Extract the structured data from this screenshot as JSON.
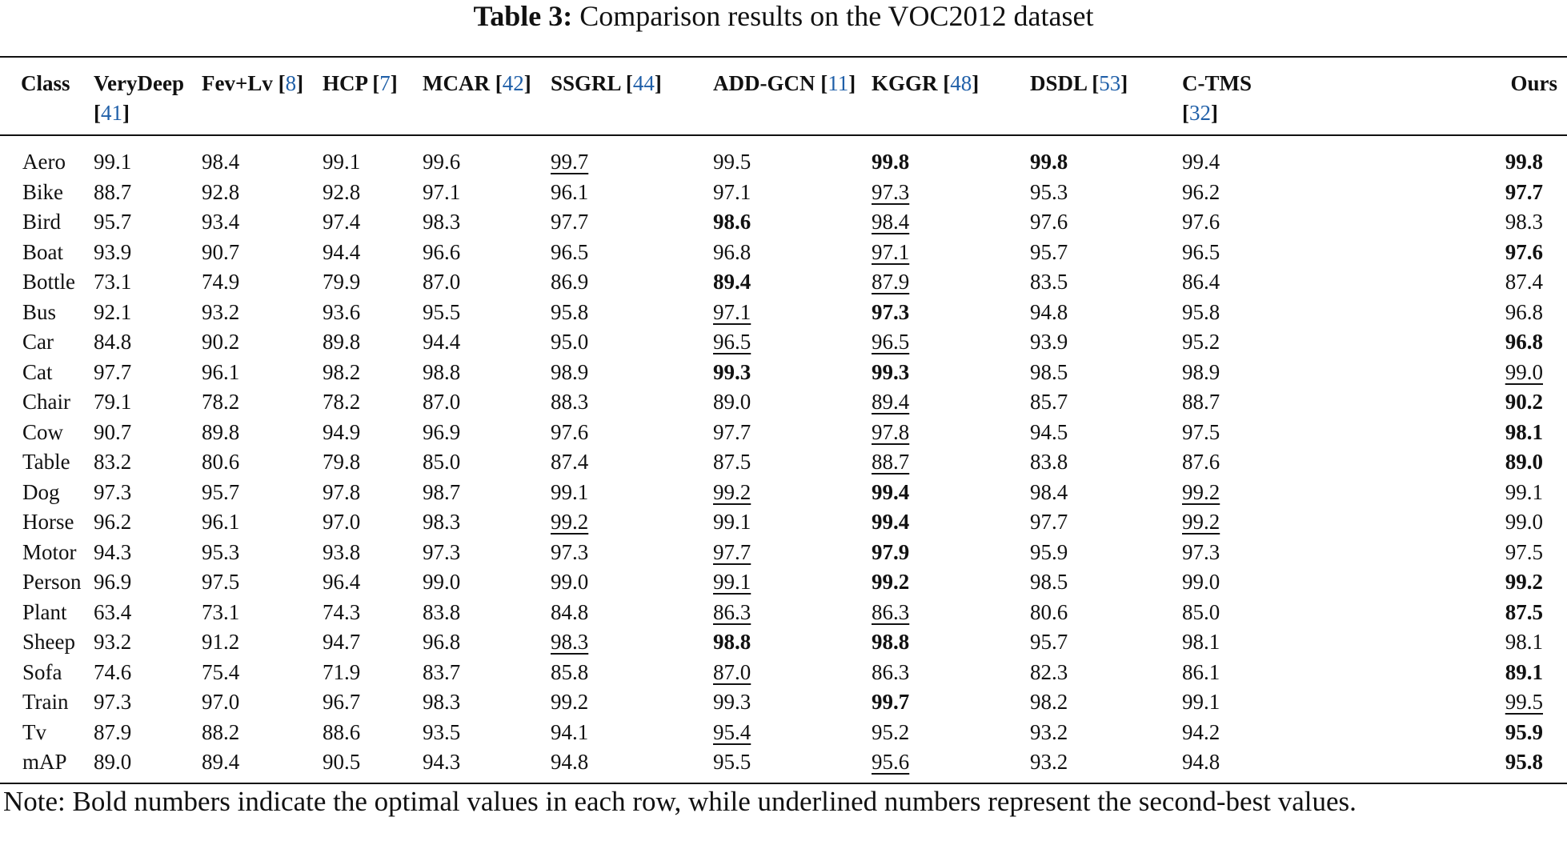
{
  "caption": {
    "label": "Table 3:",
    "text": "Comparison results on the VOC2012 dataset"
  },
  "table": {
    "headers": [
      {
        "name": "Class",
        "ref": ""
      },
      {
        "name": "VeryDeep",
        "ref": "41"
      },
      {
        "name": "Fev+Lv",
        "ref": "8"
      },
      {
        "name": "HCP",
        "ref": "7"
      },
      {
        "name": "MCAR",
        "ref": "42"
      },
      {
        "name": "SSGRL",
        "ref": "44"
      },
      {
        "name": "ADD-GCN",
        "ref": "11"
      },
      {
        "name": "KGGR",
        "ref": "48"
      },
      {
        "name": "DSDL",
        "ref": "53"
      },
      {
        "name": "C-TMS",
        "ref": "32"
      },
      {
        "name": "Ours",
        "ref": ""
      }
    ],
    "rows": [
      {
        "cls": "Aero",
        "vals": [
          "99.1",
          "98.4",
          "99.1",
          "99.6",
          "99.7",
          "99.5",
          "99.8",
          "99.8",
          "99.4",
          "99.8"
        ],
        "bold": [
          6,
          7,
          9
        ],
        "under": [
          4
        ]
      },
      {
        "cls": "Bike",
        "vals": [
          "88.7",
          "92.8",
          "92.8",
          "97.1",
          "96.1",
          "97.1",
          "97.3",
          "95.3",
          "96.2",
          "97.7"
        ],
        "bold": [
          9
        ],
        "under": [
          6
        ]
      },
      {
        "cls": "Bird",
        "vals": [
          "95.7",
          "93.4",
          "97.4",
          "98.3",
          "97.7",
          "98.6",
          "98.4",
          "97.6",
          "97.6",
          "98.3"
        ],
        "bold": [
          5
        ],
        "under": [
          6
        ]
      },
      {
        "cls": "Boat",
        "vals": [
          "93.9",
          "90.7",
          "94.4",
          "96.6",
          "96.5",
          "96.8",
          "97.1",
          "95.7",
          "96.5",
          "97.6"
        ],
        "bold": [
          9
        ],
        "under": [
          6
        ]
      },
      {
        "cls": "Bottle",
        "vals": [
          "73.1",
          "74.9",
          "79.9",
          "87.0",
          "86.9",
          "89.4",
          "87.9",
          "83.5",
          "86.4",
          "87.4"
        ],
        "bold": [
          5
        ],
        "under": [
          6
        ]
      },
      {
        "cls": "Bus",
        "vals": [
          "92.1",
          "93.2",
          "93.6",
          "95.5",
          "95.8",
          "97.1",
          "97.3",
          "94.8",
          "95.8",
          "96.8"
        ],
        "bold": [
          6
        ],
        "under": [
          5
        ]
      },
      {
        "cls": "Car",
        "vals": [
          "84.8",
          "90.2",
          "89.8",
          "94.4",
          "95.0",
          "96.5",
          "96.5",
          "93.9",
          "95.2",
          "96.8"
        ],
        "bold": [
          9
        ],
        "under": [
          5,
          6
        ]
      },
      {
        "cls": "Cat",
        "vals": [
          "97.7",
          "96.1",
          "98.2",
          "98.8",
          "98.9",
          "99.3",
          "99.3",
          "98.5",
          "98.9",
          "99.0"
        ],
        "bold": [
          5,
          6
        ],
        "under": [
          9
        ]
      },
      {
        "cls": "Chair",
        "vals": [
          "79.1",
          "78.2",
          "78.2",
          "87.0",
          "88.3",
          "89.0",
          "89.4",
          "85.7",
          "88.7",
          "90.2"
        ],
        "bold": [
          9
        ],
        "under": [
          6
        ]
      },
      {
        "cls": "Cow",
        "vals": [
          "90.7",
          "89.8",
          "94.9",
          "96.9",
          "97.6",
          "97.7",
          "97.8",
          "94.5",
          "97.5",
          "98.1"
        ],
        "bold": [
          9
        ],
        "under": [
          6
        ]
      },
      {
        "cls": "Table",
        "vals": [
          "83.2",
          "80.6",
          "79.8",
          "85.0",
          "87.4",
          "87.5",
          "88.7",
          "83.8",
          "87.6",
          "89.0"
        ],
        "bold": [
          9
        ],
        "under": [
          6
        ]
      },
      {
        "cls": "Dog",
        "vals": [
          "97.3",
          "95.7",
          "97.8",
          "98.7",
          "99.1",
          "99.2",
          "99.4",
          "98.4",
          "99.2",
          "99.1"
        ],
        "bold": [
          6
        ],
        "under": [
          5,
          8
        ]
      },
      {
        "cls": "Horse",
        "vals": [
          "96.2",
          "96.1",
          "97.0",
          "98.3",
          "99.2",
          "99.1",
          "99.4",
          "97.7",
          "99.2",
          "99.0"
        ],
        "bold": [
          6
        ],
        "under": [
          4,
          8
        ]
      },
      {
        "cls": "Motor",
        "vals": [
          "94.3",
          "95.3",
          "93.8",
          "97.3",
          "97.3",
          "97.7",
          "97.9",
          "95.9",
          "97.3",
          "97.5"
        ],
        "bold": [
          6
        ],
        "under": [
          5
        ]
      },
      {
        "cls": "Person",
        "vals": [
          "96.9",
          "97.5",
          "96.4",
          "99.0",
          "99.0",
          "99.1",
          "99.2",
          "98.5",
          "99.0",
          "99.2"
        ],
        "bold": [
          6,
          9
        ],
        "under": [
          5
        ]
      },
      {
        "cls": "Plant",
        "vals": [
          "63.4",
          "73.1",
          "74.3",
          "83.8",
          "84.8",
          "86.3",
          "86.3",
          "80.6",
          "85.0",
          "87.5"
        ],
        "bold": [
          9
        ],
        "under": [
          5,
          6
        ]
      },
      {
        "cls": "Sheep",
        "vals": [
          "93.2",
          "91.2",
          "94.7",
          "96.8",
          "98.3",
          "98.8",
          "98.8",
          "95.7",
          "98.1",
          "98.1"
        ],
        "bold": [
          5,
          6
        ],
        "under": [
          4
        ]
      },
      {
        "cls": "Sofa",
        "vals": [
          "74.6",
          "75.4",
          "71.9",
          "83.7",
          "85.8",
          "87.0",
          "86.3",
          "82.3",
          "86.1",
          "89.1"
        ],
        "bold": [
          9
        ],
        "under": [
          5
        ]
      },
      {
        "cls": "Train",
        "vals": [
          "97.3",
          "97.0",
          "96.7",
          "98.3",
          "99.2",
          "99.3",
          "99.7",
          "98.2",
          "99.1",
          "99.5"
        ],
        "bold": [
          6
        ],
        "under": [
          9
        ]
      },
      {
        "cls": "Tv",
        "vals": [
          "87.9",
          "88.2",
          "88.6",
          "93.5",
          "94.1",
          "95.4",
          "95.2",
          "93.2",
          "94.2",
          "95.9"
        ],
        "bold": [
          9
        ],
        "under": [
          5
        ]
      },
      {
        "cls": "mAP",
        "vals": [
          "89.0",
          "89.4",
          "90.5",
          "94.3",
          "94.8",
          "95.5",
          "95.6",
          "93.2",
          "94.8",
          "95.8"
        ],
        "bold": [
          9
        ],
        "under": [
          6
        ]
      }
    ]
  },
  "note": "Note: Bold numbers indicate the optimal values in each row, while underlined numbers represent the second-best values."
}
